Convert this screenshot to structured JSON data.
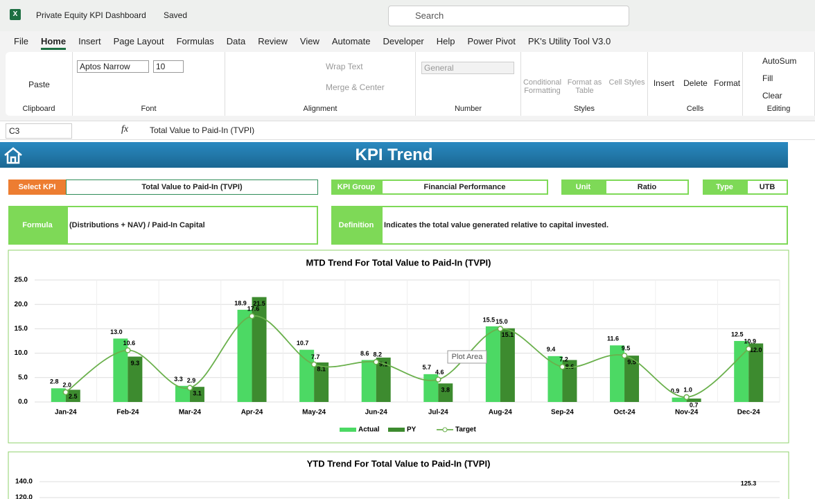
{
  "window": {
    "title": "Private Equity KPI Dashboard",
    "status": "Saved",
    "search": "Search"
  },
  "menu": [
    "File",
    "Home",
    "Insert",
    "Page Layout",
    "Formulas",
    "Data",
    "Review",
    "View",
    "Automate",
    "Developer",
    "Help",
    "Power Pivot",
    "PK's Utility Tool V3.0"
  ],
  "ribbon": {
    "groups": [
      {
        "name": "Clipboard",
        "buttons": [
          "Paste"
        ]
      },
      {
        "name": "Font",
        "buttons": [
          "Aptos Narrow",
          "10"
        ]
      },
      {
        "name": "Alignment",
        "buttons": [
          "Wrap Text",
          "Merge & Center"
        ]
      },
      {
        "name": "Number",
        "buttons": [
          "General"
        ]
      },
      {
        "name": "Styles",
        "buttons": [
          "Conditional Formatting",
          "Format as Table",
          "Cell Styles"
        ]
      },
      {
        "name": "Cells",
        "buttons": [
          "Insert",
          "Delete",
          "Format"
        ]
      },
      {
        "name": "Editing",
        "buttons": [
          "AutoSum",
          "Fill",
          "Clear"
        ]
      }
    ]
  },
  "formula_bar": {
    "cell": "C3",
    "content": "Total Value to Paid-In (TVPI)"
  },
  "dashboard": {
    "title": "KPI Trend",
    "select_kpi_label": "Select KPI",
    "select_kpi": "Total Value to Paid-In (TVPI)",
    "kpi_group_label": "KPI Group",
    "kpi_group": "Financial Performance",
    "unit_label": "Unit",
    "unit": "Ratio",
    "type_label": "Type",
    "type": "UTB",
    "formula_label": "Formula",
    "formula": "(Distributions + NAV) / Paid-In Capital",
    "definition_label": "Definition",
    "definition": "Indicates the total value generated relative to capital invested."
  },
  "chart_data": [
    {
      "type": "combo",
      "title": "MTD Trend For Total Value to Paid-In (TVPI)",
      "tooltip": "Plot Area",
      "categories": [
        "Jan-24",
        "Feb-24",
        "Mar-24",
        "Apr-24",
        "May-24",
        "Jun-24",
        "Jul-24",
        "Aug-24",
        "Sep-24",
        "Oct-24",
        "Nov-24",
        "Dec-24"
      ],
      "ylim": [
        0,
        25
      ],
      "yticks": [
        {
          "value": 0,
          "label": "0.0"
        },
        {
          "value": 5,
          "label": "5.0"
        },
        {
          "value": 10,
          "label": "10.0"
        },
        {
          "value": 15,
          "label": "15.0"
        },
        {
          "value": 20,
          "label": "20.0"
        },
        {
          "value": 25,
          "label": "25.0"
        }
      ],
      "grid": true,
      "legend": "bottom",
      "series": [
        {
          "name": "Actual",
          "type": "bar",
          "color": "#4cd964",
          "values": [
            2.8,
            13.0,
            3.3,
            18.9,
            10.7,
            8.6,
            5.7,
            15.5,
            9.4,
            11.6,
            0.9,
            12.5
          ],
          "value_labels": [
            "2.8",
            "13.0",
            "3.3",
            "18.9",
            "10.7",
            "8.6",
            "5.7",
            "15.5",
            "9.4",
            "11.6",
            "0.9",
            "12.5"
          ]
        },
        {
          "name": "PY",
          "type": "bar",
          "color": "#3d8b2f",
          "values": [
            2.5,
            9.3,
            3.1,
            21.5,
            8.1,
            9.1,
            3.8,
            15.1,
            8.6,
            9.5,
            0.7,
            12.0
          ],
          "value_labels": [
            "2.5",
            "9.3",
            "3.1",
            "21.5",
            "8.1",
            "9.1",
            "3.8",
            "15.1",
            "8.6",
            "9.5",
            "0.7",
            "12.0"
          ]
        },
        {
          "name": "Target",
          "type": "line",
          "color": "#6ab04c",
          "values": [
            2.0,
            10.6,
            2.9,
            17.6,
            7.7,
            8.2,
            4.6,
            15.0,
            7.2,
            9.5,
            1.0,
            10.9
          ],
          "value_labels": [
            "2.0",
            "10.6",
            "2.9",
            "17.6",
            "7.7",
            "8.2",
            "4.6",
            "15.0",
            "7.2",
            "9.5",
            "1.0",
            "10.9"
          ]
        }
      ]
    },
    {
      "type": "combo",
      "title": "YTD Trend For Total Value to Paid-In (TVPI)",
      "ylim": [
        0,
        140
      ],
      "yticks": [
        {
          "value": 120,
          "label": "120.0"
        },
        {
          "value": 140,
          "label": "140.0"
        }
      ],
      "grid": true,
      "annotations": [
        "125.3"
      ]
    }
  ]
}
